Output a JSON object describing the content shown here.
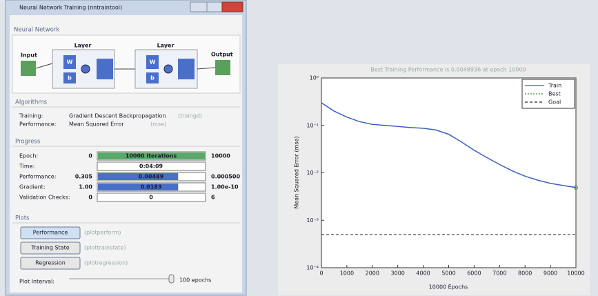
{
  "window": {
    "title": "Neural Network Training (nntraintool)"
  },
  "network": {
    "heading": "Neural Network",
    "input": "Input",
    "output": "Output",
    "layers": [
      {
        "label": "Layer",
        "w": "W",
        "b": "b"
      },
      {
        "label": "Layer",
        "w": "W",
        "b": "b"
      }
    ]
  },
  "algorithms": {
    "heading": "Algorithms",
    "rows": [
      {
        "label": "Training:",
        "value": "Gradient Descent Backpropagation",
        "fn": "(traingd)"
      },
      {
        "label": "Performance:",
        "value": "Mean Squared Error",
        "fn": "(mse)"
      }
    ]
  },
  "progress": {
    "heading": "Progress",
    "rows": [
      {
        "label": "Epoch:",
        "start": "0",
        "value": "10000 iterations",
        "end": "10000"
      },
      {
        "label": "Time:",
        "value": "0:04:09"
      },
      {
        "label": "Performance:",
        "start": "0.305",
        "value": "0.00489",
        "end": "0.000500"
      },
      {
        "label": "Gradient:",
        "start": "1.00",
        "value": "0.0183",
        "end": "1.00e-10"
      },
      {
        "label": "Validation Checks:",
        "start": "0",
        "value": "0",
        "end": "6"
      }
    ]
  },
  "plots": {
    "heading": "Plots",
    "buttons": [
      {
        "label": "Performance",
        "fn": "(plotperform)"
      },
      {
        "label": "Training State",
        "fn": "(plottrainstate)"
      },
      {
        "label": "Regression",
        "fn": "(plotregression)"
      }
    ],
    "interval_label": "Plot Interval:",
    "interval_value": "100 epochs"
  },
  "chart_data": {
    "type": "line",
    "title": "Best Training Performance is 0.0048936 at epoch 10000",
    "x_label": "10000 Epochs",
    "y_label": "Mean Squared Error  (mse)",
    "log_y": true,
    "legend": "upper right",
    "xlim": [
      0,
      10000
    ],
    "xticks": [
      0,
      1000,
      2000,
      3000,
      4000,
      5000,
      6000,
      7000,
      8000,
      9000,
      10000
    ],
    "ylim": [
      0.0001,
      1
    ],
    "yticks": [
      {
        "value": 0.0001,
        "label": "10⁻⁴"
      },
      {
        "value": 0.001,
        "label": "10⁻³"
      },
      {
        "value": 0.01,
        "label": "10⁻²"
      },
      {
        "value": 0.1,
        "label": "10⁻¹"
      },
      {
        "value": 1,
        "label": "10⁰"
      }
    ],
    "series": [
      {
        "name": "Train",
        "color": "#3b5fc0",
        "style": "solid",
        "x": [
          0,
          500,
          1000,
          1500,
          2000,
          2500,
          3000,
          3500,
          4000,
          4500,
          5000,
          5500,
          6000,
          6500,
          7000,
          7500,
          8000,
          8500,
          9000,
          9500,
          10000
        ],
        "values": [
          0.3,
          0.2,
          0.15,
          0.12,
          0.105,
          0.1,
          0.095,
          0.09,
          0.087,
          0.08,
          0.065,
          0.045,
          0.03,
          0.021,
          0.015,
          0.011,
          0.0085,
          0.007,
          0.006,
          0.0054,
          0.0049
        ]
      },
      {
        "name": "Best",
        "color": "#2a8a3a",
        "style": "dotted",
        "x": [
          10000
        ],
        "values": [
          0.00489
        ]
      },
      {
        "name": "Goal",
        "color": "#222222",
        "style": "dashed",
        "x": [
          0,
          10000
        ],
        "values": [
          0.0005,
          0.0005
        ]
      }
    ]
  }
}
